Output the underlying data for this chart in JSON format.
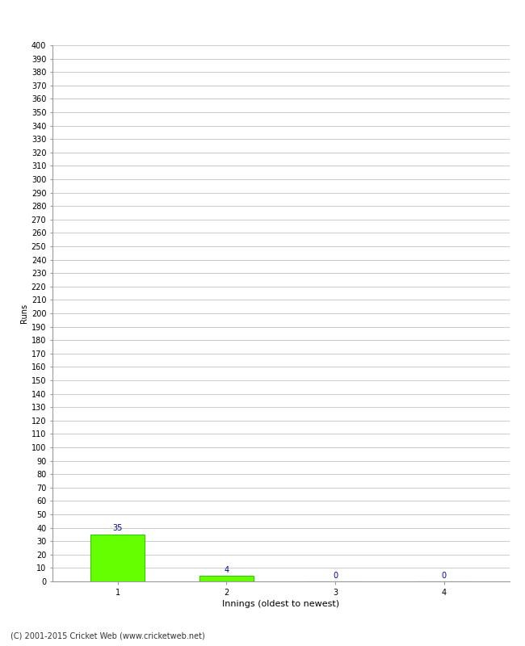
{
  "categories": [
    1,
    2,
    3,
    4
  ],
  "values": [
    35,
    4,
    0,
    0
  ],
  "bar_color": "#66ff00",
  "bar_edge_color": "#33cc00",
  "value_label_color": "#000099",
  "ylabel": "Runs",
  "xlabel": "Innings (oldest to newest)",
  "ylim": [
    0,
    400
  ],
  "ytick_step": 10,
  "background_color": "#ffffff",
  "grid_color": "#cccccc",
  "footer_text": "(C) 2001-2015 Cricket Web (www.cricketweb.net)",
  "value_fontsize": 7,
  "axis_fontsize": 8,
  "tick_label_fontsize": 7,
  "footer_fontsize": 7,
  "ylabel_fontsize": 7
}
